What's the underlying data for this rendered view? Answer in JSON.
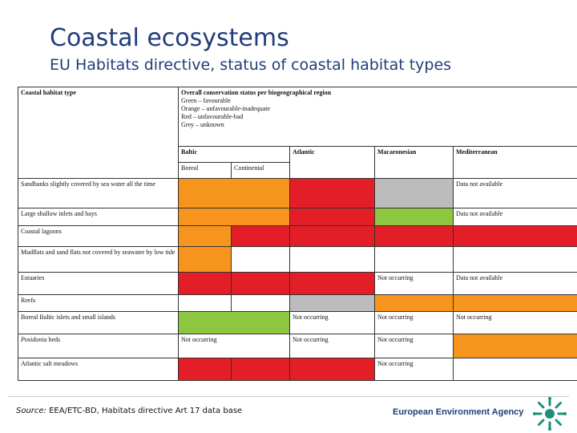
{
  "title": "Coastal ecosystems",
  "subtitle": "EU Habitats directive, status of coastal habitat types",
  "table": {
    "habitat_header": "Coastal habitat type",
    "status_header": "Overall conservation status per biogeographical region",
    "legend": [
      "Green – favourable",
      "Orange – unfavourable-inadequate",
      "Red – unfavourable-bad",
      "Grey – unknown"
    ],
    "regions": {
      "baltic": "Baltic",
      "atlantic": "Atlantic",
      "macaronesian": "Macaronesian",
      "mediterranean": "Mediterranean",
      "boreal": "Boreal",
      "continental": "Continental"
    },
    "rows": [
      {
        "label": "Sandbanks slightly covered by sea water all the time",
        "italic_prefix": ""
      },
      {
        "label": "Large shallow inlets and bays",
        "italic_prefix": ""
      },
      {
        "label": "Coastal lagoons",
        "italic_prefix": ""
      },
      {
        "label": "Mudflats and sand flats not covered by seawater by low tide",
        "italic_prefix": ""
      },
      {
        "label": "Estuaries",
        "italic_prefix": ""
      },
      {
        "label": "Reefs",
        "italic_prefix": ""
      },
      {
        "label": "Boreal Baltic islets and small islands",
        "italic_prefix": ""
      },
      {
        "label": " beds",
        "italic_prefix": "Posidonia"
      },
      {
        "label": "Atlantic salt meadows",
        "italic_prefix": ""
      }
    ],
    "cell_texts": {
      "data_not_available": "Data not available",
      "not_occurring": "Not occurring"
    }
  },
  "colors": {
    "green": "#8dc63f",
    "orange": "#f7941d",
    "red": "#e41e26",
    "grey": "#bcbcbc"
  },
  "footer": {
    "source_label": "Source:",
    "source_text": " EEA/ETC-BD,  Habitats directive Art 17 data base",
    "agency": "European Environment Agency",
    "logo_icon": "eea-logo-icon"
  }
}
